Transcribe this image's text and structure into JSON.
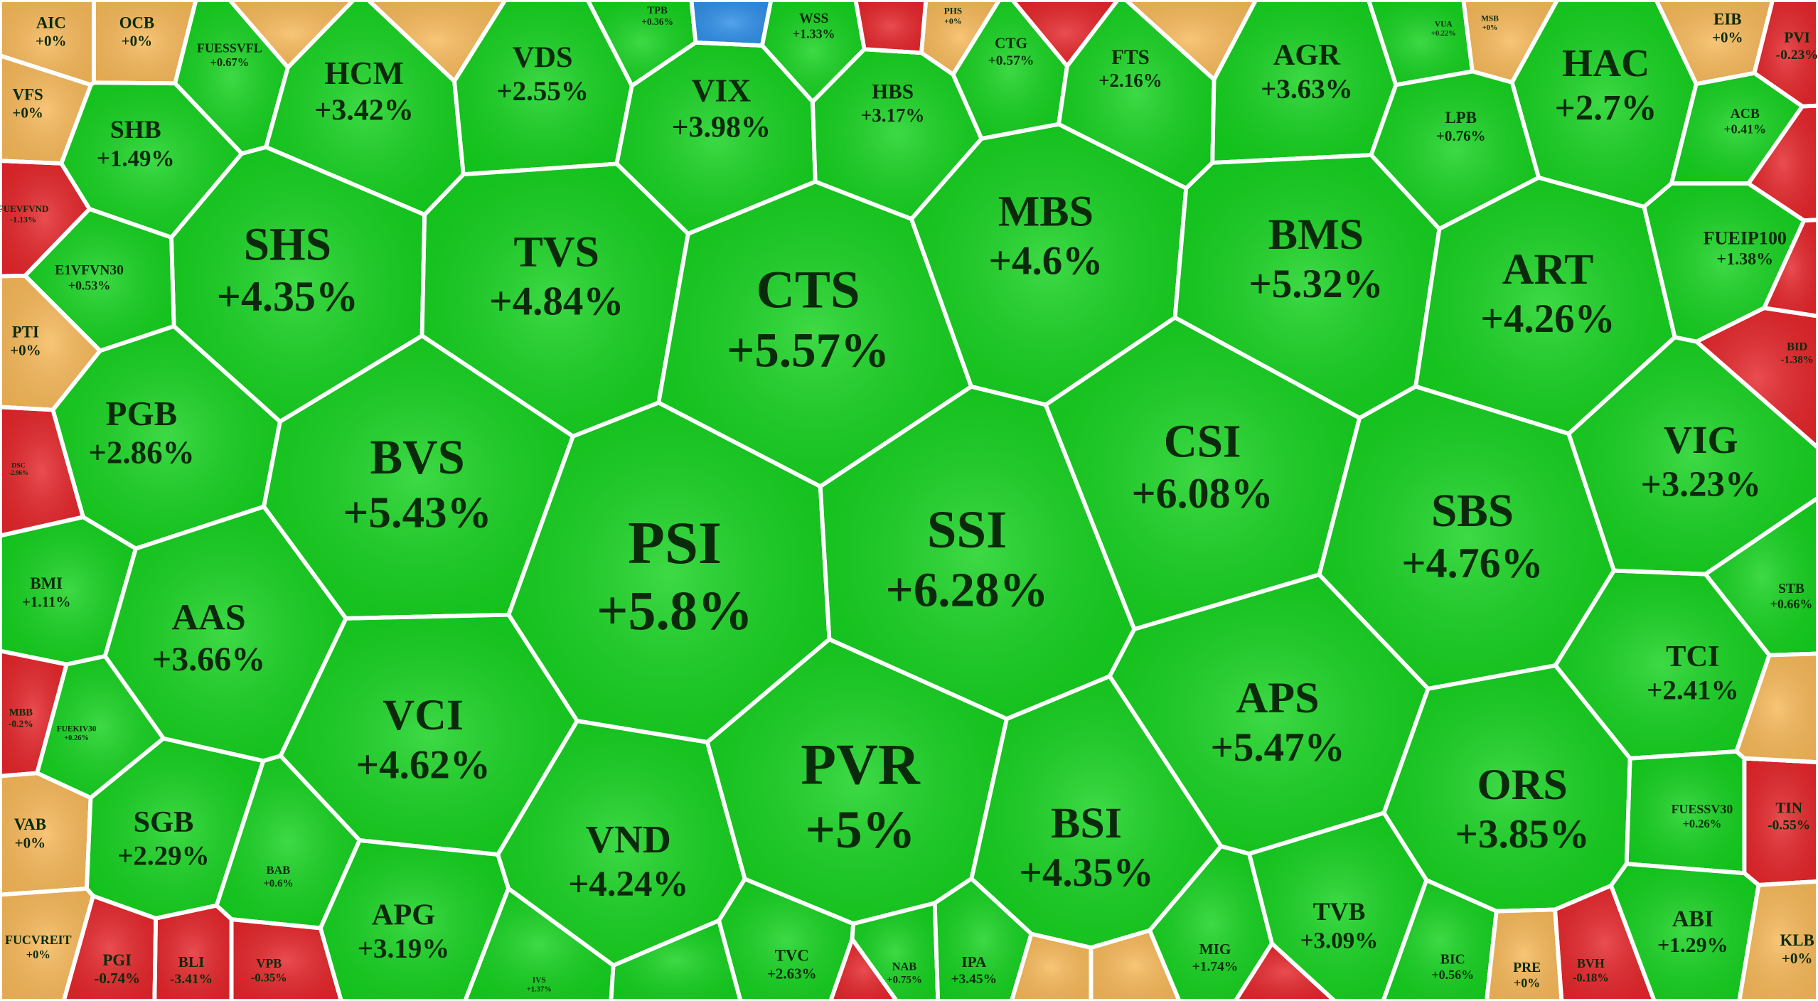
{
  "cells": [
    {
      "ticker": "AIC",
      "change": "+0%",
      "color": "#f7b95a"
    },
    {
      "ticker": "OCB",
      "change": "+0%",
      "color": "#f7b95a"
    },
    {
      "ticker": "FUESSVFL",
      "change": "+0.67%",
      "color": "#14d21e"
    },
    {
      "ticker": "HCM",
      "change": "+3.42%",
      "color": "#14d21e"
    },
    {
      "ticker": "VDS",
      "change": "+2.55%",
      "color": "#14d21e"
    },
    {
      "ticker": "TPB",
      "change": "+0.36%",
      "color": "#14d21e"
    },
    {
      "ticker": "WSS",
      "change": "+1.33%",
      "color": "#14d21e"
    },
    {
      "ticker": "PHS",
      "change": "+0%",
      "color": "#f7b95a"
    },
    {
      "ticker": "CTG",
      "change": "+0.57%",
      "color": "#14d21e"
    },
    {
      "ticker": "FTS",
      "change": "+2.16%",
      "color": "#14d21e"
    },
    {
      "ticker": "AGR",
      "change": "+3.63%",
      "color": "#14d21e"
    },
    {
      "ticker": "VUA",
      "change": "+0.22%",
      "color": "#14d21e"
    },
    {
      "ticker": "MSB",
      "change": "+0%",
      "color": "#f7b95a"
    },
    {
      "ticker": "HAC",
      "change": "+2.7%",
      "color": "#14d21e"
    },
    {
      "ticker": "EIB",
      "change": "+0%",
      "color": "#f7b95a"
    },
    {
      "ticker": "PVI",
      "change": "-0.23%",
      "color": "#e5262b"
    },
    {
      "ticker": "VFS",
      "change": "+0%",
      "color": "#f7b95a"
    },
    {
      "ticker": "SHB",
      "change": "+1.49%",
      "color": "#14d21e"
    },
    {
      "ticker": "VIX",
      "change": "+3.98%",
      "color": "#14d21e"
    },
    {
      "ticker": "HBS",
      "change": "+3.17%",
      "color": "#14d21e"
    },
    {
      "ticker": "LPB",
      "change": "+0.76%",
      "color": "#14d21e"
    },
    {
      "ticker": "ACB",
      "change": "+0.41%",
      "color": "#14d21e"
    },
    {
      "ticker": "FUEVFVND",
      "change": "-1.13%",
      "color": "#e5262b"
    },
    {
      "ticker": "SHS",
      "change": "+4.35%",
      "color": "#14d21e"
    },
    {
      "ticker": "TVS",
      "change": "+4.84%",
      "color": "#14d21e"
    },
    {
      "ticker": "CTS",
      "change": "+5.57%",
      "color": "#14d21e"
    },
    {
      "ticker": "MBS",
      "change": "+4.6%",
      "color": "#14d21e"
    },
    {
      "ticker": "BMS",
      "change": "+5.32%",
      "color": "#14d21e"
    },
    {
      "ticker": "ART",
      "change": "+4.26%",
      "color": "#14d21e"
    },
    {
      "ticker": "FUEIP100",
      "change": "+1.38%",
      "color": "#14d21e"
    },
    {
      "ticker": "E1VFVN30",
      "change": "+0.53%",
      "color": "#14d21e"
    },
    {
      "ticker": "PTI",
      "change": "+0%",
      "color": "#f7b95a"
    },
    {
      "ticker": "BID",
      "change": "-1.38%",
      "color": "#e5262b"
    },
    {
      "ticker": "PGB",
      "change": "+2.86%",
      "color": "#14d21e"
    },
    {
      "ticker": "DSC",
      "change": "-2.96%",
      "color": "#e5262b"
    },
    {
      "ticker": "BVS",
      "change": "+5.43%",
      "color": "#14d21e"
    },
    {
      "ticker": "PSI",
      "change": "+5.8%",
      "color": "#14d21e"
    },
    {
      "ticker": "SSI",
      "change": "+6.28%",
      "color": "#14d21e"
    },
    {
      "ticker": "CSI",
      "change": "+6.08%",
      "color": "#14d21e"
    },
    {
      "ticker": "SBS",
      "change": "+4.76%",
      "color": "#14d21e"
    },
    {
      "ticker": "VIG",
      "change": "+3.23%",
      "color": "#14d21e"
    },
    {
      "ticker": "BMI",
      "change": "+1.11%",
      "color": "#14d21e"
    },
    {
      "ticker": "STB",
      "change": "+0.66%",
      "color": "#14d21e"
    },
    {
      "ticker": "AAS",
      "change": "+3.66%",
      "color": "#14d21e"
    },
    {
      "ticker": "TCI",
      "change": "+2.41%",
      "color": "#14d21e"
    },
    {
      "ticker": "MBB",
      "change": "-0.2%",
      "color": "#e5262b"
    },
    {
      "ticker": "FUEKIV30",
      "change": "+0.26%",
      "color": "#14d21e"
    },
    {
      "ticker": "VCI",
      "change": "+4.62%",
      "color": "#14d21e"
    },
    {
      "ticker": "APS",
      "change": "+5.47%",
      "color": "#14d21e"
    },
    {
      "ticker": "PVR",
      "change": "+5%",
      "color": "#14d21e"
    },
    {
      "ticker": "BSI",
      "change": "+4.35%",
      "color": "#14d21e"
    },
    {
      "ticker": "ORS",
      "change": "+3.85%",
      "color": "#14d21e"
    },
    {
      "ticker": "VND",
      "change": "+4.24%",
      "color": "#14d21e"
    },
    {
      "ticker": "VAB",
      "change": "+0%",
      "color": "#f7b95a"
    },
    {
      "ticker": "SGB",
      "change": "+2.29%",
      "color": "#14d21e"
    },
    {
      "ticker": "BAB",
      "change": "+0.6%",
      "color": "#14d21e"
    },
    {
      "ticker": "FUESSV30",
      "change": "+0.26%",
      "color": "#14d21e"
    },
    {
      "ticker": "TIN",
      "change": "-0.55%",
      "color": "#e5262b"
    },
    {
      "ticker": "APG",
      "change": "+3.19%",
      "color": "#14d21e"
    },
    {
      "ticker": "TVB",
      "change": "+3.09%",
      "color": "#14d21e"
    },
    {
      "ticker": "MIG",
      "change": "+1.74%",
      "color": "#14d21e"
    },
    {
      "ticker": "ABI",
      "change": "+1.29%",
      "color": "#14d21e"
    },
    {
      "ticker": "KLB",
      "change": "+0%",
      "color": "#f7b95a"
    },
    {
      "ticker": "FUCVREIT",
      "change": "+0%",
      "color": "#f7b95a"
    },
    {
      "ticker": "PGI",
      "change": "-0.74%",
      "color": "#e5262b"
    },
    {
      "ticker": "BLI",
      "change": "-3.41%",
      "color": "#e5262b"
    },
    {
      "ticker": "VPB",
      "change": "-0.35%",
      "color": "#e5262b"
    },
    {
      "ticker": "IVS",
      "change": "+1.37%",
      "color": "#14d21e"
    },
    {
      "ticker": "TVC",
      "change": "+2.63%",
      "color": "#14d21e"
    },
    {
      "ticker": "NAB",
      "change": "+0.75%",
      "color": "#14d21e"
    },
    {
      "ticker": "IPA",
      "change": "+3.45%",
      "color": "#14d21e"
    },
    {
      "ticker": "BIC",
      "change": "+0.56%",
      "color": "#14d21e"
    },
    {
      "ticker": "PRE",
      "change": "+0%",
      "color": "#f7b95a"
    },
    {
      "ticker": "BVH",
      "change": "-0.18%",
      "color": "#e5262b"
    }
  ]
}
